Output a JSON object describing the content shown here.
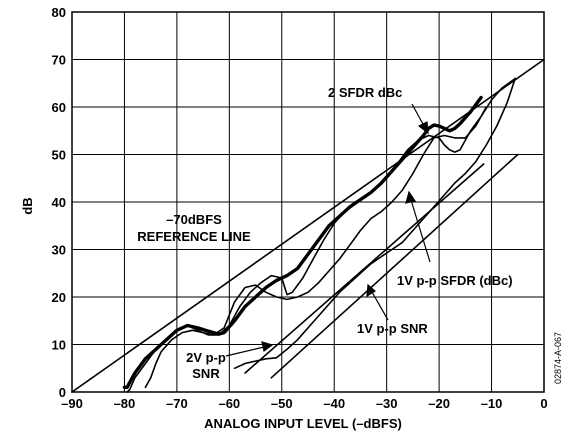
{
  "chart_data": {
    "type": "line",
    "title": "",
    "xlabel": "ANALOG INPUT LEVEL (–dBFS)",
    "ylabel": "dB",
    "xlim": [
      -90,
      0
    ],
    "ylim": [
      0,
      80
    ],
    "x_ticks": [
      -90,
      -80,
      -70,
      -60,
      -50,
      -40,
      -30,
      -20,
      -10,
      0
    ],
    "x_tick_labels": [
      "–90",
      "–80",
      "–70",
      "–60",
      "–50",
      "–40",
      "–30",
      "–20",
      "–10",
      "0"
    ],
    "y_ticks": [
      0,
      10,
      20,
      30,
      40,
      50,
      60,
      70,
      80
    ],
    "y_tick_labels": [
      "0",
      "10",
      "20",
      "30",
      "40",
      "50",
      "60",
      "70",
      "80"
    ],
    "grid": true,
    "figure_id": "02874-A-067",
    "series": [
      {
        "key": "sfdr2",
        "x": [
          -80,
          -79.5,
          -78,
          -76,
          -74,
          -72,
          -70,
          -68,
          -66,
          -64,
          -62,
          -61,
          -59,
          -57,
          -55,
          -53,
          -51,
          -49,
          -47,
          -45,
          -43,
          -41,
          -39,
          -37,
          -35,
          -33,
          -31,
          -29,
          -27,
          -25,
          -23,
          -22,
          -21,
          -20,
          -19,
          -18,
          -17,
          -16,
          -14,
          -12
        ],
        "values": [
          1,
          1,
          4,
          7,
          9,
          11,
          13,
          14,
          13.5,
          12.8,
          12.2,
          12.5,
          15,
          18,
          20,
          22,
          23.5,
          24.5,
          26,
          29,
          32,
          35,
          37,
          39,
          40.5,
          42,
          44,
          46.5,
          49,
          51.5,
          54,
          55.5,
          56.2,
          56,
          55.5,
          55,
          55.5,
          56.5,
          59,
          62
        ]
      },
      {
        "key": "sfdr1",
        "x": [
          -79.5,
          -79,
          -78,
          -76,
          -74,
          -72,
          -70,
          -68,
          -66,
          -64,
          -62,
          -60,
          -58,
          -56,
          -54,
          -52,
          -50,
          -49,
          -48,
          -46,
          -44,
          -42,
          -40,
          -38,
          -36,
          -34,
          -32,
          -30,
          -28,
          -26,
          -24,
          -22,
          -20,
          -19,
          -18,
          -17,
          -16,
          -15,
          -14,
          -12,
          -10,
          -8,
          -5.5
        ],
        "values": [
          0,
          0.5,
          3,
          6,
          9,
          11,
          13,
          14,
          13,
          12,
          12,
          14,
          18,
          21,
          23,
          24.5,
          24,
          20.5,
          21,
          24,
          28,
          32,
          35.5,
          38,
          40,
          41,
          43,
          45.5,
          48,
          51,
          53,
          54,
          53.5,
          52,
          51,
          50.5,
          51,
          53,
          55,
          58,
          61.5,
          64,
          66
        ]
      },
      {
        "key": "snr2",
        "x": [
          -59,
          -57,
          -55,
          -53,
          -51,
          -49,
          -47,
          -45,
          -43,
          -41,
          -39,
          -37,
          -35,
          -33,
          -31,
          -29,
          -27,
          -25,
          -23,
          -21,
          -19,
          -17,
          -15,
          -13,
          -11,
          -9,
          -7,
          -5.5
        ],
        "values": [
          5,
          6,
          6.5,
          7,
          7.2,
          9,
          11,
          13.5,
          16,
          18.5,
          21,
          23,
          25,
          27,
          28.5,
          30,
          31.5,
          34,
          36.5,
          39,
          41.5,
          44,
          46,
          48.5,
          52,
          56,
          61,
          66
        ]
      },
      {
        "key": "snr1",
        "x": [
          -76,
          -75,
          -74,
          -73,
          -71,
          -69,
          -67,
          -65,
          -63,
          -61,
          -59,
          -57,
          -55,
          -53,
          -51,
          -49,
          -47,
          -45,
          -43,
          -41,
          -39,
          -37,
          -35,
          -33,
          -31,
          -29,
          -27,
          -25,
          -23,
          -21,
          -19,
          -17,
          -15,
          -13,
          -11
        ],
        "values": [
          1,
          3,
          6,
          8.5,
          11,
          12.5,
          13,
          12.5,
          12,
          13.5,
          19,
          22,
          22.5,
          21,
          20,
          19.5,
          20,
          21,
          23,
          25.5,
          28,
          31,
          34,
          36.5,
          38,
          40,
          42.5,
          46,
          50,
          53.5,
          54,
          53.5,
          53.5,
          56,
          60
        ]
      },
      {
        "key": "ref",
        "x": [
          -90,
          0
        ],
        "values": [
          0,
          70
        ]
      },
      {
        "key": "snr_line_a",
        "x": [
          -57,
          -11.5
        ],
        "values": [
          4,
          48
        ]
      },
      {
        "key": "snr_line_b",
        "x": [
          -52,
          -5
        ],
        "values": [
          3,
          50
        ]
      }
    ],
    "annotations": {
      "sfdr2_label": "2 SFDR dBc",
      "ref_line_1": "–70dBFS",
      "ref_line_2": "REFERENCE LINE",
      "sfdr1_label": "1V p-p SFDR (dBc)",
      "snr1_label": "1V p-p SNR",
      "snr2_line_1": "2V p-p",
      "snr2_line_2": "SNR"
    }
  }
}
